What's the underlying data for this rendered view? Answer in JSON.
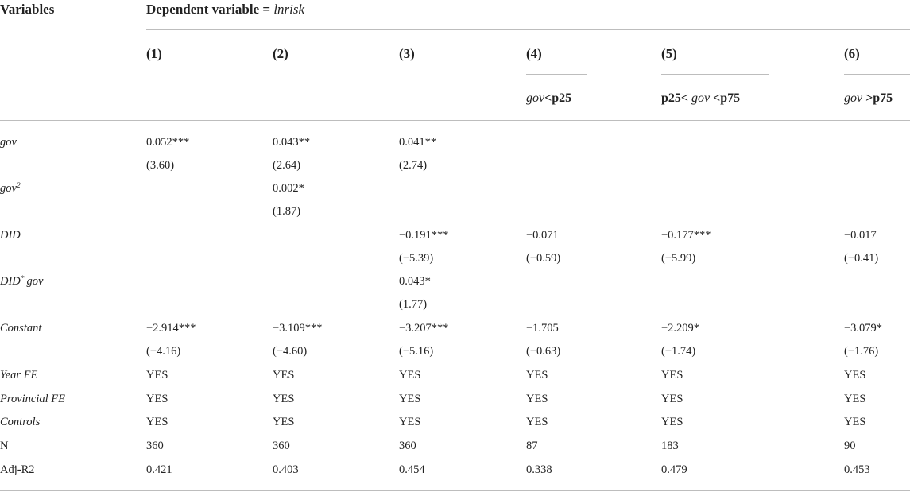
{
  "header": {
    "variables_label": "Variables",
    "dependent_prefix": "Dependent variable = ",
    "dependent_var": "lnrisk",
    "columns": [
      "(1)",
      "(2)",
      "(3)",
      "(4)",
      "(5)",
      "(6)"
    ],
    "sub4": {
      "var": "gov",
      "rest": "<p25"
    },
    "sub5": {
      "pre": "p25< ",
      "var": "gov",
      "rest": " <p75"
    },
    "sub6": {
      "var": "gov",
      "rest": " >p75"
    }
  },
  "rows": {
    "gov": {
      "label": "gov",
      "c1": "0.052***",
      "c2": "0.043**",
      "c3": "0.041**"
    },
    "gov_t": {
      "c1": "(3.60)",
      "c2": "(2.64)",
      "c3": "(2.74)"
    },
    "gov2": {
      "label": "gov",
      "sup": "2",
      "c2": "0.002*"
    },
    "gov2_t": {
      "c2": "(1.87)"
    },
    "did": {
      "label": "DID",
      "c3": "−0.191***",
      "c4": "−0.071",
      "c5": "−0.177***",
      "c6": "−0.017"
    },
    "did_t": {
      "c3": "(−5.39)",
      "c4": "(−0.59)",
      "c5": "(−5.99)",
      "c6": "(−0.41)"
    },
    "didgov": {
      "label_a": "DID",
      "sup": "*",
      "label_b": "gov",
      "c3": "0.043*"
    },
    "didgov_t": {
      "c3": "(1.77)"
    },
    "constant": {
      "label": "Constant",
      "c1": "−2.914***",
      "c2": "−3.109***",
      "c3": "−3.207***",
      "c4": "−1.705",
      "c5": "−2.209*",
      "c6": "−3.079*"
    },
    "constant_t": {
      "c1": "(−4.16)",
      "c2": "(−4.60)",
      "c3": "(−5.16)",
      "c4": "(−0.63)",
      "c5": "(−1.74)",
      "c6": "(−1.76)"
    },
    "year_fe": {
      "label": "Year FE",
      "c1": "YES",
      "c2": "YES",
      "c3": "YES",
      "c4": "YES",
      "c5": "YES",
      "c6": "YES"
    },
    "prov_fe": {
      "label": "Provincial FE",
      "c1": "YES",
      "c2": "YES",
      "c3": "YES",
      "c4": "YES",
      "c5": "YES",
      "c6": "YES"
    },
    "controls": {
      "label": "Controls",
      "c1": "YES",
      "c2": "YES",
      "c3": "YES",
      "c4": "YES",
      "c5": "YES",
      "c6": "YES"
    },
    "n": {
      "label": "N",
      "c1": "360",
      "c2": "360",
      "c3": "360",
      "c4": "87",
      "c5": "183",
      "c6": "90"
    },
    "adjr2": {
      "label": "Adj-R2",
      "c1": "0.421",
      "c2": "0.403",
      "c3": "0.454",
      "c4": "0.338",
      "c5": "0.479",
      "c6": "0.453"
    }
  }
}
